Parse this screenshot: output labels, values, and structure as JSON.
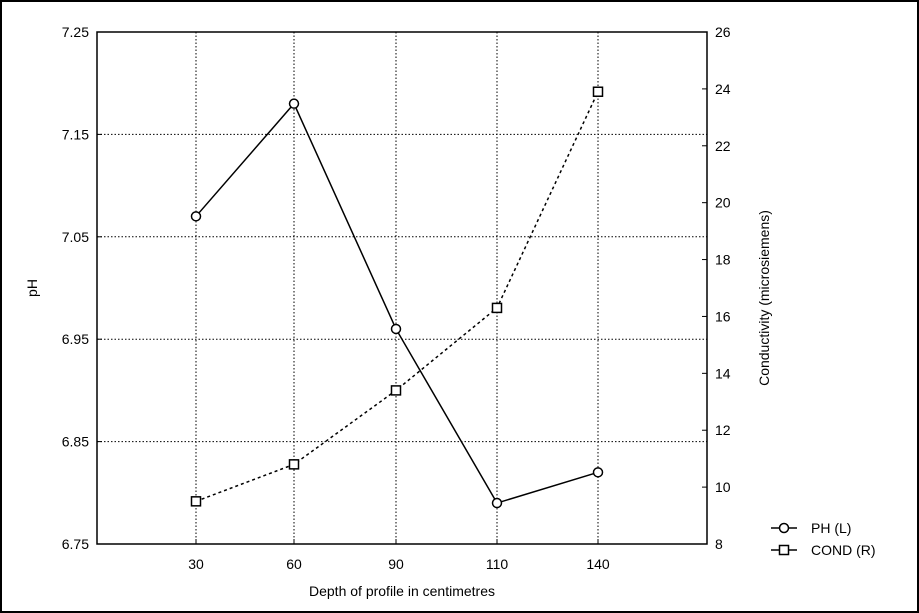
{
  "chart_data": {
    "type": "line",
    "title": "",
    "xlabel": "Depth of profile in centimetres",
    "ylabel_left": "pH",
    "ylabel_right": "Conductivity (microsiemens)",
    "categories": [
      "30",
      "60",
      "90",
      "110",
      "140"
    ],
    "x_ticks": [
      30,
      60,
      90,
      110,
      140
    ],
    "y_left": {
      "min": 6.75,
      "max": 7.25,
      "ticks": [
        "6.75",
        "6.85",
        "6.95",
        "7.05",
        "7.15",
        "7.25"
      ]
    },
    "y_right": {
      "min": 8,
      "max": 26,
      "ticks": [
        "8",
        "10",
        "12",
        "14",
        "16",
        "18",
        "20",
        "22",
        "24",
        "26"
      ]
    },
    "grid": true,
    "legend_position": "bottom-right",
    "series": [
      {
        "name": "PH (L)",
        "axis": "left",
        "marker": "circle",
        "line": "solid",
        "color": "#000000",
        "values": [
          7.07,
          7.18,
          6.96,
          6.79,
          6.82
        ]
      },
      {
        "name": "COND (R)",
        "axis": "right",
        "marker": "square",
        "line": "dotted",
        "color": "#000000",
        "values": [
          9.5,
          10.8,
          13.4,
          16.3,
          23.9
        ]
      }
    ]
  }
}
